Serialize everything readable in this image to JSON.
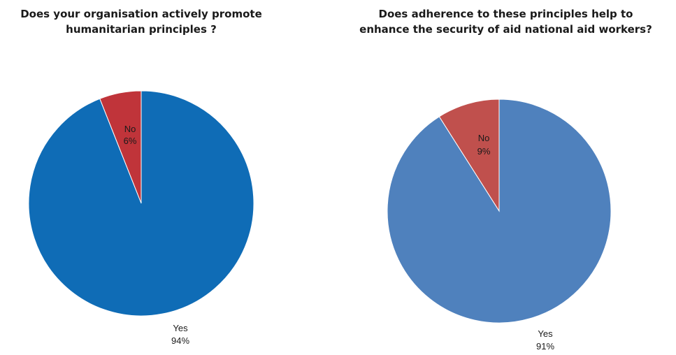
{
  "chart_data": [
    {
      "type": "pie",
      "title": [
        "Does your organisation actively promote",
        "humanitarian principles ?"
      ],
      "slices": [
        {
          "label": "Yes",
          "value": 94,
          "display": "94%"
        },
        {
          "label": "No",
          "value": 6,
          "display": "6%"
        }
      ],
      "colors": {
        "Yes": "#0F6CB6",
        "No": "#C0343A"
      }
    },
    {
      "type": "pie",
      "title": [
        "Does adherence to these principles help to",
        "enhance the security of aid national aid workers?"
      ],
      "slices": [
        {
          "label": "Yes",
          "value": 91,
          "display": "91%"
        },
        {
          "label": "No",
          "value": 9,
          "display": "9%"
        }
      ],
      "colors": {
        "Yes": "#4F81BD",
        "No": "#C0504D"
      }
    }
  ]
}
